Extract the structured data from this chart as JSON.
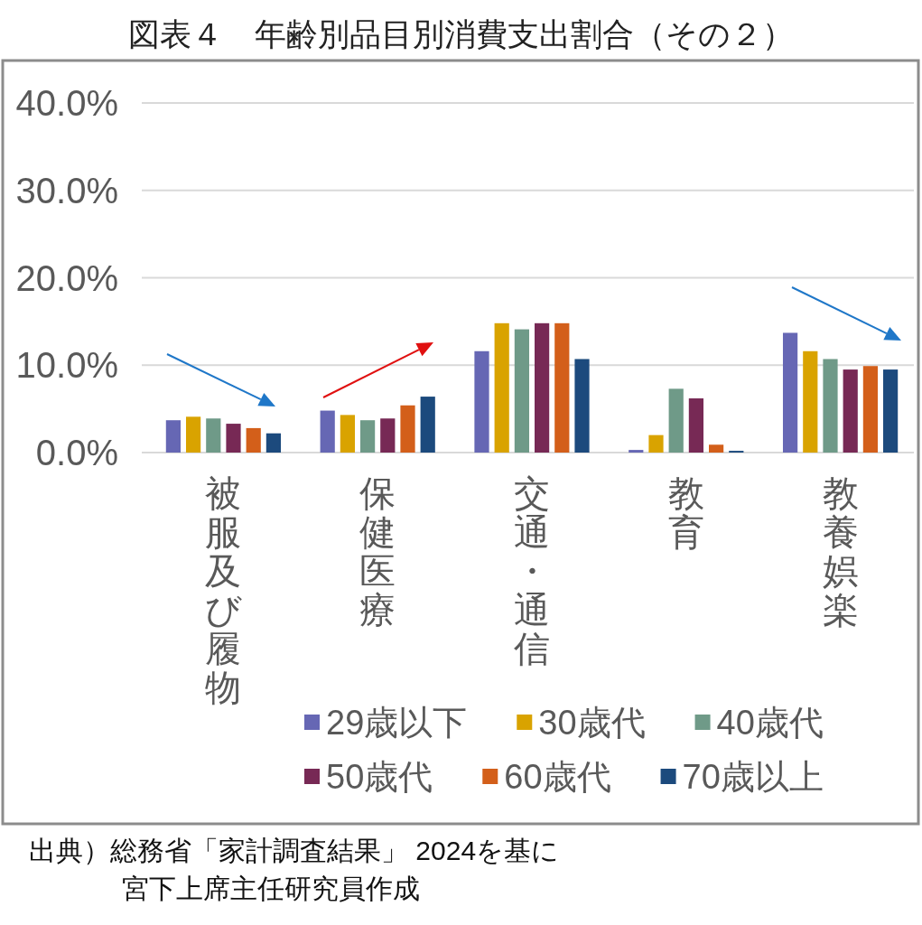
{
  "chart_data": {
    "type": "bar",
    "title": "図表４　年齢別品目別消費支出割合（その２）",
    "categories": [
      "被服及び履物",
      "保健医療",
      "交通・通信",
      "教育",
      "教養娯楽"
    ],
    "series": [
      {
        "name": "29歳以下",
        "color": "#6667b4",
        "values": [
          3.7,
          4.8,
          11.6,
          0.3,
          13.7
        ]
      },
      {
        "name": "30歳代",
        "color": "#d9a300",
        "values": [
          4.1,
          4.3,
          14.8,
          2.0,
          11.6
        ]
      },
      {
        "name": "40歳代",
        "color": "#6f9a88",
        "values": [
          3.9,
          3.7,
          14.1,
          7.3,
          10.7
        ]
      },
      {
        "name": "50歳代",
        "color": "#772955",
        "values": [
          3.3,
          3.9,
          14.8,
          6.2,
          9.5
        ]
      },
      {
        "name": "60歳代",
        "color": "#d35f1a",
        "values": [
          2.8,
          5.4,
          14.8,
          0.9,
          9.9
        ]
      },
      {
        "name": "70歳以上",
        "color": "#1c4a7d",
        "values": [
          2.2,
          6.4,
          10.7,
          0.2,
          9.5
        ]
      }
    ],
    "ylim": [
      0,
      40
    ],
    "yticks": [
      {
        "value": 0,
        "label": "0.0%"
      },
      {
        "value": 10,
        "label": "10.0%"
      },
      {
        "value": 20,
        "label": "20.0%"
      },
      {
        "value": 30,
        "label": "30.0%"
      },
      {
        "value": 40,
        "label": "40.0%"
      }
    ],
    "grid": "y",
    "legend": "bottom",
    "annotations": [
      "出典）総務省「家計調査結果」 2024を基に",
      "宮下上席主任研究員作成"
    ]
  }
}
